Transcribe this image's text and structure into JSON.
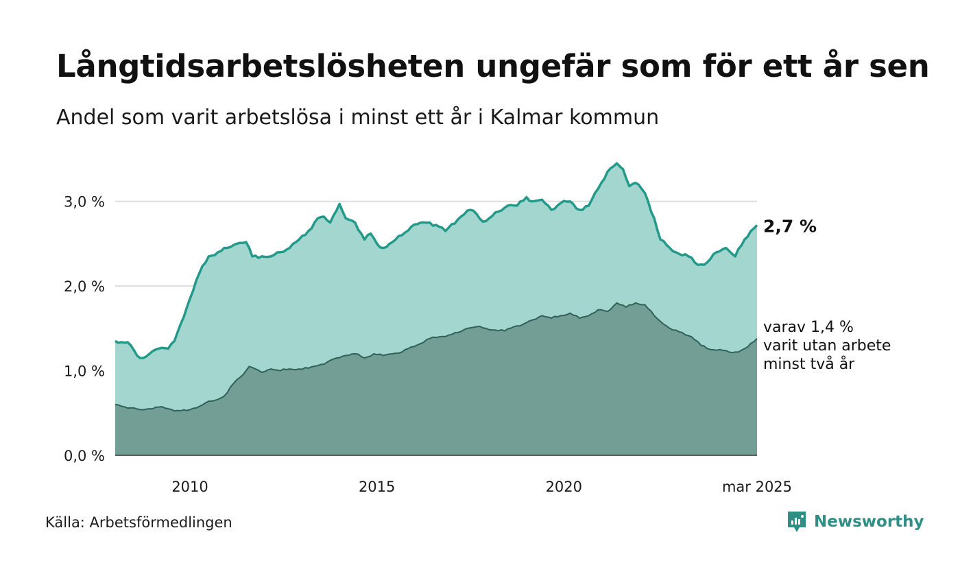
{
  "header": {
    "title": "Långtidsarbetslösheten ungefär som för ett år sen",
    "subtitle": "Andel som varit arbetslösa i minst ett år i Kalmar kommun"
  },
  "footer": {
    "source": "Källa: Arbetsförmedlingen",
    "brand": "Newsworthy"
  },
  "colors": {
    "total_line": "#23998a",
    "total_fill": "#a4d6d0",
    "sub_line": "#2f6158",
    "sub_fill": "#729e95",
    "grid": "#dcdcdc",
    "brand": "#2f8f85"
  },
  "chart_data": {
    "type": "area",
    "x_start": "2008-01",
    "x_end": "2025-03",
    "x_step": "month",
    "ylim": [
      0,
      3.5
    ],
    "yticks": [
      {
        "value": 0,
        "label": "0,0 %"
      },
      {
        "value": 1,
        "label": "1,0 %"
      },
      {
        "value": 2,
        "label": "2,0 %"
      },
      {
        "value": 3,
        "label": "3,0 %"
      }
    ],
    "xticks": [
      {
        "date": "2010-01",
        "label": "2010"
      },
      {
        "date": "2015-01",
        "label": "2015"
      },
      {
        "date": "2020-01",
        "label": "2020"
      },
      {
        "date": "2025-03",
        "label": "mar 2025"
      }
    ],
    "grid": true,
    "series": [
      {
        "key": "total",
        "end_label": "2,7 %",
        "keypoints": [
          [
            "2008-01",
            1.35
          ],
          [
            "2008-02",
            1.33
          ],
          [
            "2008-04",
            1.33
          ],
          [
            "2008-06",
            1.3
          ],
          [
            "2008-08",
            1.18
          ],
          [
            "2008-10",
            1.15
          ],
          [
            "2008-12",
            1.2
          ],
          [
            "2009-02",
            1.25
          ],
          [
            "2009-04",
            1.27
          ],
          [
            "2009-06",
            1.26
          ],
          [
            "2009-08",
            1.35
          ],
          [
            "2009-10",
            1.55
          ],
          [
            "2010-01",
            1.85
          ],
          [
            "2010-04",
            2.15
          ],
          [
            "2010-07",
            2.35
          ],
          [
            "2010-10",
            2.4
          ],
          [
            "2011-01",
            2.45
          ],
          [
            "2011-04",
            2.5
          ],
          [
            "2011-07",
            2.52
          ],
          [
            "2011-09",
            2.35
          ],
          [
            "2011-12",
            2.35
          ],
          [
            "2012-03",
            2.35
          ],
          [
            "2012-06",
            2.4
          ],
          [
            "2012-09",
            2.45
          ],
          [
            "2012-12",
            2.55
          ],
          [
            "2013-03",
            2.65
          ],
          [
            "2013-06",
            2.8
          ],
          [
            "2013-08",
            2.82
          ],
          [
            "2013-10",
            2.75
          ],
          [
            "2013-11",
            2.83
          ],
          [
            "2014-01",
            2.97
          ],
          [
            "2014-03",
            2.8
          ],
          [
            "2014-06",
            2.75
          ],
          [
            "2014-09",
            2.55
          ],
          [
            "2014-11",
            2.62
          ],
          [
            "2015-01",
            2.5
          ],
          [
            "2015-03",
            2.45
          ],
          [
            "2015-06",
            2.52
          ],
          [
            "2015-09",
            2.6
          ],
          [
            "2015-12",
            2.7
          ],
          [
            "2016-03",
            2.75
          ],
          [
            "2016-06",
            2.75
          ],
          [
            "2016-09",
            2.7
          ],
          [
            "2016-11",
            2.65
          ],
          [
            "2017-01",
            2.73
          ],
          [
            "2017-04",
            2.82
          ],
          [
            "2017-07",
            2.9
          ],
          [
            "2017-09",
            2.85
          ],
          [
            "2017-11",
            2.76
          ],
          [
            "2018-01",
            2.8
          ],
          [
            "2018-04",
            2.88
          ],
          [
            "2018-07",
            2.95
          ],
          [
            "2018-10",
            2.95
          ],
          [
            "2019-01",
            3.05
          ],
          [
            "2019-03",
            3.0
          ],
          [
            "2019-06",
            3.02
          ],
          [
            "2019-09",
            2.9
          ],
          [
            "2019-12",
            2.98
          ],
          [
            "2020-03",
            3.0
          ],
          [
            "2020-06",
            2.9
          ],
          [
            "2020-09",
            2.95
          ],
          [
            "2020-12",
            3.15
          ],
          [
            "2021-03",
            3.35
          ],
          [
            "2021-06",
            3.45
          ],
          [
            "2021-08",
            3.38
          ],
          [
            "2021-10",
            3.18
          ],
          [
            "2021-12",
            3.22
          ],
          [
            "2022-03",
            3.1
          ],
          [
            "2022-06",
            2.8
          ],
          [
            "2022-08",
            2.55
          ],
          [
            "2022-11",
            2.45
          ],
          [
            "2023-02",
            2.38
          ],
          [
            "2023-05",
            2.35
          ],
          [
            "2023-08",
            2.25
          ],
          [
            "2023-11",
            2.28
          ],
          [
            "2024-02",
            2.4
          ],
          [
            "2024-05",
            2.45
          ],
          [
            "2024-08",
            2.35
          ],
          [
            "2024-11",
            2.55
          ],
          [
            "2025-01",
            2.65
          ],
          [
            "2025-03",
            2.72
          ]
        ]
      },
      {
        "key": "sub",
        "end_label": [
          "varav 1,4 %",
          "varit utan arbete",
          "minst två år"
        ],
        "keypoints": [
          [
            "2008-01",
            0.6
          ],
          [
            "2008-03",
            0.58
          ],
          [
            "2008-06",
            0.56
          ],
          [
            "2008-09",
            0.54
          ],
          [
            "2008-12",
            0.55
          ],
          [
            "2009-03",
            0.57
          ],
          [
            "2009-06",
            0.55
          ],
          [
            "2009-09",
            0.53
          ],
          [
            "2009-12",
            0.53
          ],
          [
            "2010-03",
            0.56
          ],
          [
            "2010-06",
            0.62
          ],
          [
            "2010-09",
            0.65
          ],
          [
            "2010-12",
            0.7
          ],
          [
            "2011-03",
            0.85
          ],
          [
            "2011-06",
            0.95
          ],
          [
            "2011-08",
            1.05
          ],
          [
            "2011-10",
            1.02
          ],
          [
            "2011-12",
            0.98
          ],
          [
            "2012-03",
            1.02
          ],
          [
            "2012-06",
            1.0
          ],
          [
            "2012-09",
            1.02
          ],
          [
            "2012-12",
            1.02
          ],
          [
            "2013-03",
            1.03
          ],
          [
            "2013-06",
            1.06
          ],
          [
            "2013-09",
            1.1
          ],
          [
            "2013-12",
            1.15
          ],
          [
            "2014-03",
            1.18
          ],
          [
            "2014-06",
            1.2
          ],
          [
            "2014-09",
            1.15
          ],
          [
            "2014-12",
            1.2
          ],
          [
            "2015-03",
            1.18
          ],
          [
            "2015-06",
            1.2
          ],
          [
            "2015-09",
            1.22
          ],
          [
            "2015-12",
            1.28
          ],
          [
            "2016-03",
            1.32
          ],
          [
            "2016-06",
            1.38
          ],
          [
            "2016-09",
            1.4
          ],
          [
            "2016-12",
            1.42
          ],
          [
            "2017-03",
            1.45
          ],
          [
            "2017-06",
            1.5
          ],
          [
            "2017-09",
            1.52
          ],
          [
            "2017-12",
            1.5
          ],
          [
            "2018-03",
            1.48
          ],
          [
            "2018-06",
            1.47
          ],
          [
            "2018-09",
            1.52
          ],
          [
            "2018-12",
            1.55
          ],
          [
            "2019-03",
            1.6
          ],
          [
            "2019-06",
            1.65
          ],
          [
            "2019-09",
            1.62
          ],
          [
            "2019-12",
            1.65
          ],
          [
            "2020-03",
            1.68
          ],
          [
            "2020-06",
            1.62
          ],
          [
            "2020-09",
            1.65
          ],
          [
            "2020-12",
            1.72
          ],
          [
            "2021-03",
            1.7
          ],
          [
            "2021-06",
            1.8
          ],
          [
            "2021-09",
            1.75
          ],
          [
            "2021-12",
            1.8
          ],
          [
            "2022-03",
            1.78
          ],
          [
            "2022-06",
            1.65
          ],
          [
            "2022-09",
            1.55
          ],
          [
            "2022-12",
            1.48
          ],
          [
            "2023-03",
            1.45
          ],
          [
            "2023-06",
            1.4
          ],
          [
            "2023-09",
            1.3
          ],
          [
            "2023-12",
            1.25
          ],
          [
            "2024-03",
            1.25
          ],
          [
            "2024-06",
            1.22
          ],
          [
            "2024-09",
            1.22
          ],
          [
            "2024-12",
            1.28
          ],
          [
            "2025-03",
            1.38
          ]
        ]
      }
    ]
  }
}
